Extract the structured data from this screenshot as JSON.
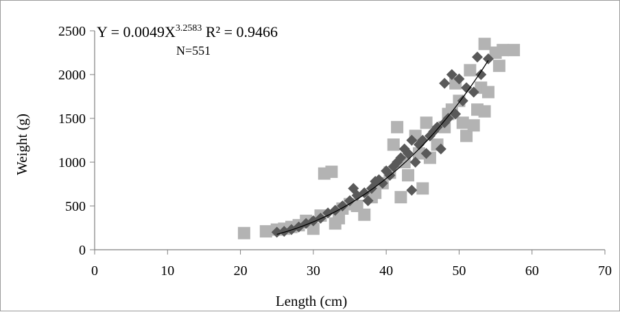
{
  "chart_data": {
    "type": "scatter",
    "xlabel": "Length (cm)",
    "ylabel": "Weight (g)",
    "xlim": [
      0,
      70
    ],
    "ylim": [
      0,
      2500
    ],
    "xticks": [
      0,
      10,
      20,
      30,
      40,
      50,
      60,
      70
    ],
    "yticks": [
      0,
      500,
      1000,
      1500,
      2000,
      2500
    ],
    "grid": false,
    "annotations": {
      "equation_prefix": "Y = 0.0049X",
      "equation_exponent": "3.2583",
      "equation_r2": " R² = 0.9466",
      "n_label": "N=551"
    },
    "trendline": {
      "type": "power",
      "coefficient": 0.0049,
      "exponent": 3.2583,
      "x_range": [
        25,
        54
      ],
      "color": "#000000"
    },
    "series": [
      {
        "marker": "square",
        "color": "#b3b3b3",
        "points": [
          [
            20.5,
            190
          ],
          [
            23.5,
            210
          ],
          [
            25,
            230
          ],
          [
            26,
            240
          ],
          [
            27,
            260
          ],
          [
            28,
            280
          ],
          [
            29,
            330
          ],
          [
            30,
            240
          ],
          [
            31,
            390
          ],
          [
            31.5,
            870
          ],
          [
            32.5,
            890
          ],
          [
            33,
            300
          ],
          [
            33.5,
            360
          ],
          [
            34,
            470
          ],
          [
            35,
            520
          ],
          [
            36,
            500
          ],
          [
            37,
            400
          ],
          [
            38,
            600
          ],
          [
            38.5,
            650
          ],
          [
            39.5,
            760
          ],
          [
            40.5,
            880
          ],
          [
            41,
            1200
          ],
          [
            41.5,
            1400
          ],
          [
            42,
            600
          ],
          [
            42.5,
            1000
          ],
          [
            43,
            850
          ],
          [
            44,
            1300
          ],
          [
            44.5,
            1100
          ],
          [
            45,
            700
          ],
          [
            45.5,
            1450
          ],
          [
            46,
            1050
          ],
          [
            47,
            1200
          ],
          [
            48,
            1400
          ],
          [
            48.5,
            1550
          ],
          [
            49,
            1600
          ],
          [
            49.5,
            1900
          ],
          [
            50,
            1700
          ],
          [
            50.5,
            1450
          ],
          [
            51,
            1300
          ],
          [
            52,
            1420
          ],
          [
            52.5,
            1600
          ],
          [
            53,
            1850
          ],
          [
            53.5,
            1580
          ],
          [
            54,
            1800
          ],
          [
            53.5,
            2350
          ],
          [
            55,
            2250
          ],
          [
            55.5,
            2100
          ],
          [
            56,
            2280
          ],
          [
            57.5,
            2280
          ],
          [
            51.5,
            2050
          ]
        ]
      },
      {
        "marker": "diamond",
        "color": "#595959",
        "points": [
          [
            25,
            200
          ],
          [
            26,
            210
          ],
          [
            27,
            230
          ],
          [
            28,
            260
          ],
          [
            29,
            300
          ],
          [
            30,
            330
          ],
          [
            31,
            360
          ],
          [
            32,
            420
          ],
          [
            33,
            450
          ],
          [
            34,
            500
          ],
          [
            35,
            560
          ],
          [
            35.5,
            700
          ],
          [
            36,
            620
          ],
          [
            37,
            650
          ],
          [
            37.5,
            560
          ],
          [
            38,
            700
          ],
          [
            38.5,
            780
          ],
          [
            39,
            800
          ],
          [
            39.5,
            760
          ],
          [
            40,
            900
          ],
          [
            40.5,
            850
          ],
          [
            41,
            950
          ],
          [
            41.5,
            1000
          ],
          [
            42,
            1050
          ],
          [
            42.5,
            1150
          ],
          [
            43,
            1100
          ],
          [
            43.5,
            1250
          ],
          [
            43.5,
            680
          ],
          [
            44,
            1000
          ],
          [
            44.5,
            1200
          ],
          [
            45,
            1250
          ],
          [
            45.5,
            1100
          ],
          [
            46,
            1300
          ],
          [
            46.5,
            1350
          ],
          [
            47,
            1400
          ],
          [
            47.5,
            1150
          ],
          [
            48,
            1450
          ],
          [
            48,
            1900
          ],
          [
            48.5,
            1500
          ],
          [
            49,
            2000
          ],
          [
            49.5,
            1550
          ],
          [
            50,
            1950
          ],
          [
            50.5,
            1700
          ],
          [
            51,
            1850
          ],
          [
            52,
            1800
          ],
          [
            52.5,
            2200
          ],
          [
            53,
            2000
          ],
          [
            54,
            2180
          ]
        ]
      }
    ]
  }
}
